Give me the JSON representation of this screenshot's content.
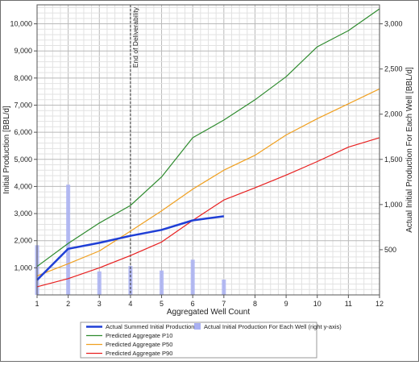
{
  "chart_data": {
    "type": "line",
    "xlabel": "Aggregated Well Count",
    "ylabel": "Initial Production [BBL/d]",
    "y2label": "Actual Initial Production For Each Well [BBL/d]",
    "x_ticks": [
      1,
      2,
      3,
      4,
      5,
      6,
      7,
      8,
      9,
      10,
      11,
      12
    ],
    "xlim": [
      1,
      12
    ],
    "ylim": [
      0,
      10700
    ],
    "y_ticks": [
      1000,
      2000,
      3000,
      4000,
      5000,
      6000,
      7000,
      8000,
      9000,
      10000
    ],
    "y_tick_labels": [
      "1,000",
      "2,000",
      "3,000",
      "4,000",
      "5,000",
      "6,000",
      "7,000",
      "8,000",
      "9,000",
      "10,000"
    ],
    "y2lim": [
      0,
      3210
    ],
    "y2_ticks": [
      500,
      1000,
      1500,
      2000,
      2500,
      3000
    ],
    "y2_tick_labels": [
      "500",
      "1,000",
      "1,500",
      "2,000",
      "2,500",
      "3,000"
    ],
    "grid": true,
    "annotation": {
      "text": "End of Deliverability",
      "x": 4
    },
    "series": [
      {
        "name": "Actual Summed Initial Production",
        "axis": "left",
        "color": "#1f3fd6",
        "x": [
          1,
          2,
          3,
          4,
          5,
          6,
          7
        ],
        "values": [
          550,
          1700,
          1920,
          2180,
          2400,
          2750,
          2900
        ]
      },
      {
        "name": "Predicted Aggregate P10",
        "axis": "left",
        "color": "#2e8b2e",
        "x": [
          1,
          2,
          3,
          4,
          5,
          6,
          7,
          8,
          9,
          10,
          11,
          12
        ],
        "values": [
          1050,
          1900,
          2650,
          3300,
          4350,
          5800,
          6450,
          7200,
          8050,
          9150,
          9750,
          10550
        ]
      },
      {
        "name": "Predicted Aggregate P50",
        "axis": "left",
        "color": "#f0a020",
        "x": [
          1,
          2,
          3,
          4,
          5,
          6,
          7,
          8,
          9,
          10,
          11,
          12
        ],
        "values": [
          700,
          1150,
          1620,
          2350,
          3100,
          3900,
          4600,
          5150,
          5900,
          6500,
          7050,
          7600
        ]
      },
      {
        "name": "Predicted Aggregate P90",
        "axis": "left",
        "color": "#e82020",
        "x": [
          1,
          2,
          3,
          4,
          5,
          6,
          7,
          8,
          9,
          10,
          11,
          12
        ],
        "values": [
          300,
          600,
          1000,
          1450,
          1950,
          2750,
          3500,
          3950,
          4420,
          4920,
          5450,
          5800
        ]
      }
    ],
    "bars": {
      "name": "Actual Initial Production For Each Well (right y-axis)",
      "axis": "right",
      "color": "#a9b0f2",
      "x": [
        1,
        2,
        3,
        4,
        5,
        6,
        7
      ],
      "values": [
        550,
        1220,
        260,
        320,
        270,
        390,
        170
      ]
    }
  },
  "legend": {
    "placement": "bottom",
    "items": [
      {
        "label": "Actual Summed Initial Production",
        "kind": "line",
        "color": "#1f3fd6",
        "weight": 2.5
      },
      {
        "label": "Actual Initial Production For Each Well (right y-axis)",
        "kind": "box",
        "color": "#a9b0f2"
      },
      {
        "label": "Predicted Aggregate P10",
        "kind": "line",
        "color": "#2e8b2e",
        "weight": 1.2
      },
      {
        "label": "Predicted Aggregate P50",
        "kind": "line",
        "color": "#f0a020",
        "weight": 1.2
      },
      {
        "label": "Predicted Aggregate P90",
        "kind": "line",
        "color": "#e82020",
        "weight": 1.2
      }
    ]
  }
}
